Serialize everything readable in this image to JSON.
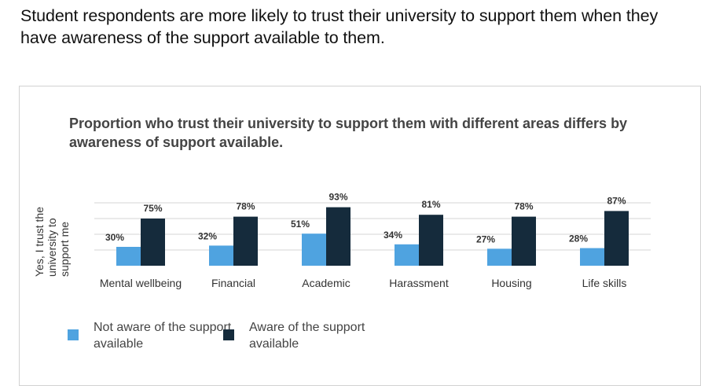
{
  "headline": "Student respondents are more likely to trust their university to support them when they have awareness of the support available to them.",
  "chart_data": {
    "type": "bar",
    "title": "Proportion who trust their university to support them with different areas differs by awareness of support available.",
    "ylabel": "Yes, I trust the university to support me",
    "xlabel": "",
    "categories": [
      "Mental wellbeing",
      "Financial",
      "Academic",
      "Harassment",
      "Housing",
      "Life skills"
    ],
    "series": [
      {
        "name": "Not aware of the support available",
        "color": "#4fa3e0",
        "values": [
          30,
          32,
          51,
          34,
          27,
          28
        ]
      },
      {
        "name": "Aware of the support available",
        "color": "#152b3c",
        "values": [
          75,
          78,
          93,
          81,
          78,
          87
        ]
      }
    ],
    "value_suffix": "%",
    "ylim": [
      0,
      100
    ],
    "grid": true,
    "legend": "bottom-left"
  }
}
